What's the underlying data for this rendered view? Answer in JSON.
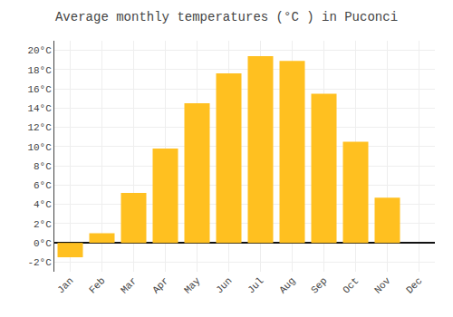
{
  "chart_data": {
    "type": "bar",
    "title": "Average monthly temperatures (°C ) in Puconci",
    "categories": [
      "Jan",
      "Feb",
      "Mar",
      "Apr",
      "May",
      "Jun",
      "Jul",
      "Aug",
      "Sep",
      "Oct",
      "Nov",
      "Dec"
    ],
    "values": [
      -1.5,
      1.0,
      5.2,
      9.8,
      14.5,
      17.6,
      19.4,
      18.9,
      15.5,
      10.5,
      4.7,
      0.0
    ],
    "color": "#FFC020",
    "ylim": [
      -3,
      21
    ],
    "yticks": [
      {
        "value": -2,
        "label": "-2°C"
      },
      {
        "value": 0,
        "label": "0°C"
      },
      {
        "value": 2,
        "label": "2°C"
      },
      {
        "value": 4,
        "label": "4°C"
      },
      {
        "value": 6,
        "label": "6°C"
      },
      {
        "value": 8,
        "label": "8°C"
      },
      {
        "value": 10,
        "label": "10°C"
      },
      {
        "value": 12,
        "label": "12°C"
      },
      {
        "value": 14,
        "label": "14°C"
      },
      {
        "value": 16,
        "label": "16°C"
      },
      {
        "value": 18,
        "label": "18°C"
      },
      {
        "value": 20,
        "label": "20°C"
      }
    ],
    "grid": true
  }
}
